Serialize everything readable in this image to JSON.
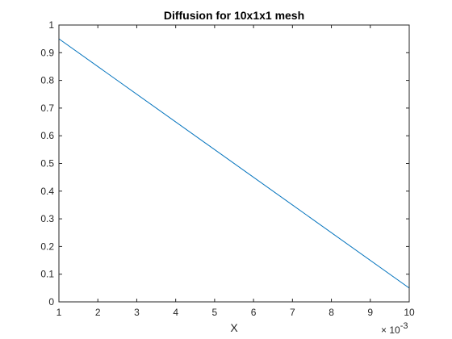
{
  "chart_data": {
    "type": "line",
    "title": "Diffusion for 10x1x1 mesh",
    "xlabel": "X",
    "ylabel": "",
    "x_scale_label": {
      "base": "× 10",
      "exponent": "-3"
    },
    "xlim": [
      1,
      10
    ],
    "ylim": [
      0,
      1
    ],
    "xticks": [
      "1",
      "2",
      "3",
      "4",
      "5",
      "6",
      "7",
      "8",
      "9",
      "10"
    ],
    "yticks": [
      "0",
      "0.1",
      "0.2",
      "0.3",
      "0.4",
      "0.5",
      "0.6",
      "0.7",
      "0.8",
      "0.9",
      "1"
    ],
    "grid": false,
    "series": [
      {
        "color": "#0072bd",
        "x": [
          1,
          10
        ],
        "y": [
          0.95,
          0.05
        ]
      }
    ]
  }
}
